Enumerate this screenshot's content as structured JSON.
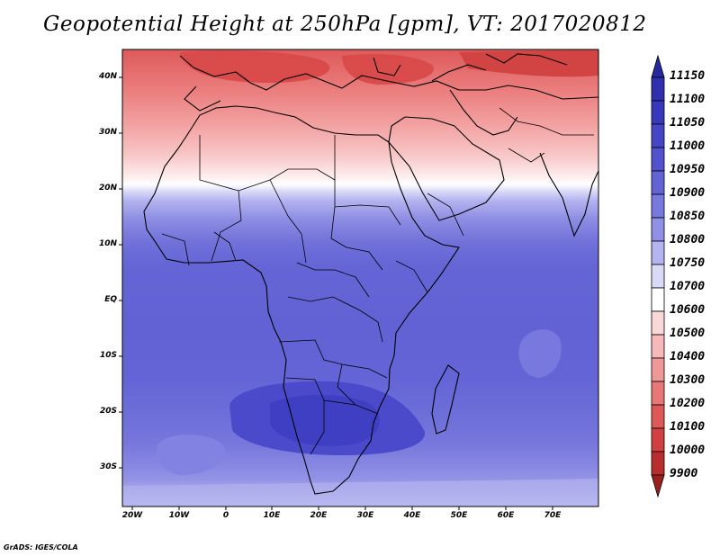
{
  "title": "Geopotential Height at 250hPa [gpm], VT: 2017020812",
  "credit": "GrADS: IGES/COLA",
  "map": {
    "lat_ticks": [
      "40N",
      "30N",
      "20N",
      "10N",
      "EQ",
      "10S",
      "20S",
      "30S"
    ],
    "lon_ticks": [
      "20W",
      "10W",
      "0",
      "10E",
      "20E",
      "30E",
      "40E",
      "50E",
      "60E",
      "70E"
    ]
  },
  "colorbar": {
    "levels": [
      "11150",
      "11100",
      "11050",
      "11000",
      "10950",
      "10900",
      "10850",
      "10800",
      "10750",
      "10700",
      "10600",
      "10500",
      "10400",
      "10300",
      "10200",
      "10100",
      "10000",
      "9900"
    ],
    "colors": [
      "#28289e",
      "#2f2fb0",
      "#3838bd",
      "#4545c6",
      "#5252ce",
      "#6363d6",
      "#7878de",
      "#9090e6",
      "#b4b4f0",
      "#dadaf8",
      "#ffffff",
      "#fbd8d8",
      "#f6b8b8",
      "#f09898",
      "#e87878",
      "#de5858",
      "#d04040",
      "#b82e2e",
      "#9a2020"
    ]
  }
}
